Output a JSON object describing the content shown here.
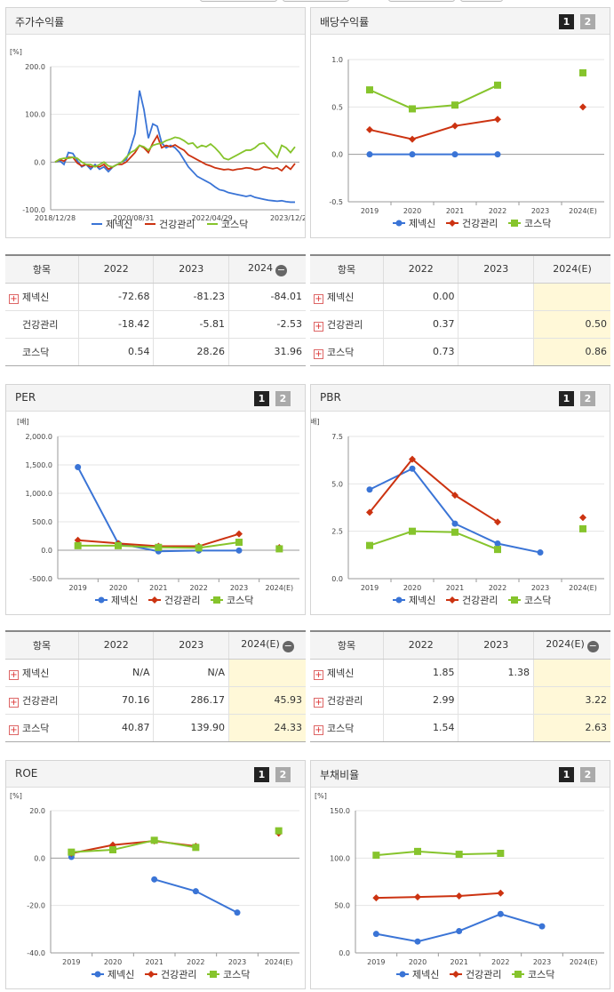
{
  "legend_names": [
    "제넥신",
    "건강관리",
    "코스닥"
  ],
  "colors": {
    "blue": "#3a74d6",
    "red": "#cc3311",
    "green": "#86c42c"
  },
  "toggle_labels": [
    "1",
    "2"
  ],
  "stock_return": {
    "title": "주가수익률",
    "unit": "[%]",
    "chart_data": {
      "type": "line",
      "x_labels": [
        "2018/12/28",
        "2020/08/31",
        "2022/04/29",
        "2023/12/28"
      ],
      "y_ticks": [
        "200.0",
        "100.0",
        "0.0",
        "-100.0"
      ],
      "ylim": [
        -100,
        200
      ],
      "series": [
        {
          "name": "제넥신",
          "values": [
            0,
            3,
            -5,
            20,
            18,
            3,
            -10,
            -5,
            -15,
            -5,
            -15,
            -10,
            -20,
            -10,
            -5,
            0,
            5,
            30,
            60,
            150,
            110,
            50,
            80,
            75,
            40,
            30,
            35,
            30,
            20,
            5,
            -10,
            -20,
            -30,
            -35,
            -40,
            -45,
            -52,
            -58,
            -60,
            -64,
            -66,
            -68,
            -70,
            -72,
            -70,
            -74,
            -76,
            -78,
            -80,
            -81,
            -82,
            -81,
            -83,
            -84,
            -84
          ]
        },
        {
          "name": "건강관리",
          "values": [
            0,
            5,
            2,
            10,
            10,
            -2,
            -8,
            -5,
            -10,
            -8,
            -10,
            -5,
            -15,
            -10,
            -5,
            -5,
            0,
            10,
            20,
            35,
            30,
            20,
            40,
            55,
            30,
            35,
            32,
            36,
            30,
            25,
            15,
            10,
            5,
            0,
            -5,
            -8,
            -12,
            -14,
            -16,
            -15,
            -17,
            -15,
            -14,
            -12,
            -13,
            -16,
            -15,
            -10,
            -12,
            -14,
            -12,
            -18,
            -8,
            -15,
            -3
          ]
        },
        {
          "name": "코스닥",
          "values": [
            0,
            6,
            8,
            8,
            10,
            8,
            0,
            -5,
            -5,
            -10,
            -5,
            0,
            -8,
            -10,
            -5,
            0,
            10,
            20,
            25,
            35,
            32,
            25,
            35,
            38,
            40,
            45,
            48,
            52,
            50,
            45,
            38,
            40,
            30,
            35,
            32,
            38,
            30,
            20,
            8,
            5,
            10,
            15,
            20,
            25,
            25,
            30,
            38,
            40,
            30,
            20,
            10,
            35,
            30,
            20,
            32
          ]
        }
      ]
    }
  },
  "dividend": {
    "title": "배당수익률",
    "chart_data": {
      "type": "line",
      "categories": [
        "2019",
        "2020",
        "2021",
        "2022",
        "2023",
        "2024(E)"
      ],
      "y_ticks": [
        "1.0",
        "0.5",
        "0.0",
        "-0.5"
      ],
      "ylim": [
        -0.5,
        1.0
      ],
      "series": [
        {
          "name": "제넥신",
          "values": [
            0.0,
            0.0,
            0.0,
            0.0,
            null,
            null
          ]
        },
        {
          "name": "건강관리",
          "values": [
            0.26,
            0.16,
            0.3,
            0.37,
            null,
            0.5
          ]
        },
        {
          "name": "코스닥",
          "values": [
            0.68,
            0.48,
            0.52,
            0.73,
            null,
            0.86
          ]
        }
      ]
    }
  },
  "per": {
    "title": "PER",
    "unit": "[배]",
    "chart_data": {
      "type": "line",
      "categories": [
        "2019",
        "2020",
        "2021",
        "2022",
        "2023",
        "2024(E)"
      ],
      "y_ticks": [
        "2,000.0",
        "1,500.0",
        "1,000.0",
        "500.0",
        "0.0",
        "-500.0"
      ],
      "ylim": [
        -500,
        2000
      ],
      "series": [
        {
          "name": "제넥신",
          "values": [
            1460,
            120,
            -20,
            -5,
            -5,
            null
          ]
        },
        {
          "name": "건강관리",
          "values": [
            175,
            120,
            70,
            70,
            286.17,
            45.93
          ]
        },
        {
          "name": "코스닥",
          "values": [
            80,
            80,
            50,
            40.87,
            139.9,
            24.33
          ]
        }
      ]
    }
  },
  "pbr": {
    "title": "PBR",
    "unit": "[배]",
    "chart_data": {
      "type": "line",
      "categories": [
        "2019",
        "2020",
        "2021",
        "2022",
        "2023",
        "2024(E)"
      ],
      "y_ticks": [
        "7.5",
        "5.0",
        "2.5",
        "0.0"
      ],
      "ylim": [
        0,
        7.5
      ],
      "series": [
        {
          "name": "제넥신",
          "values": [
            4.7,
            5.8,
            2.9,
            1.85,
            1.38,
            null
          ]
        },
        {
          "name": "건강관리",
          "values": [
            3.5,
            6.3,
            4.4,
            2.99,
            null,
            3.22
          ]
        },
        {
          "name": "코스닥",
          "values": [
            1.75,
            2.5,
            2.45,
            1.54,
            null,
            2.63
          ]
        }
      ]
    }
  },
  "roe": {
    "title": "ROE",
    "unit": "[%]",
    "chart_data": {
      "type": "line",
      "categories": [
        "2019",
        "2020",
        "2021",
        "2022",
        "2023",
        "2024(E)"
      ],
      "y_ticks": [
        "20.0",
        "0.0",
        "-20.0",
        "-40.0"
      ],
      "ylim": [
        -40,
        20
      ],
      "series": [
        {
          "name": "제넥신",
          "values": [
            0.5,
            null,
            -9,
            -14,
            -23,
            null
          ]
        },
        {
          "name": "건강관리",
          "values": [
            2,
            5.5,
            7.2,
            5,
            null,
            10.5
          ]
        },
        {
          "name": "코스닥",
          "values": [
            2.5,
            3.5,
            7.5,
            4.5,
            null,
            11.5
          ]
        }
      ]
    }
  },
  "debt": {
    "title": "부채비율",
    "unit": "[%]",
    "chart_data": {
      "type": "line",
      "categories": [
        "2019",
        "2020",
        "2021",
        "2022",
        "2023",
        "2024(E)"
      ],
      "y_ticks": [
        "150.0",
        "100.0",
        "50.0",
        "0.0"
      ],
      "ylim": [
        0,
        150
      ],
      "series": [
        {
          "name": "제넥신",
          "values": [
            20,
            12,
            23,
            41,
            28,
            null
          ]
        },
        {
          "name": "건강관리",
          "values": [
            58,
            59,
            60,
            63,
            null,
            null
          ]
        },
        {
          "name": "코스닥",
          "values": [
            103,
            107,
            104,
            105,
            null,
            null
          ]
        }
      ]
    }
  },
  "tables": {
    "stock": {
      "headers": [
        "항목",
        "2022",
        "2023",
        "2024"
      ],
      "rows": [
        {
          "name": "제넥신",
          "cells": [
            "-72.68",
            "-81.23",
            "-84.01"
          ]
        },
        {
          "name": "건강관리",
          "cells": [
            "-18.42",
            "-5.81",
            "-2.53"
          ]
        },
        {
          "name": "코스닥",
          "cells": [
            "0.54",
            "28.26",
            "31.96"
          ]
        }
      ]
    },
    "dividend": {
      "headers": [
        "항목",
        "2022",
        "2023",
        "2024(E)"
      ],
      "rows": [
        {
          "name": "제넥신",
          "cells": [
            "0.00",
            "",
            ""
          ]
        },
        {
          "name": "건강관리",
          "cells": [
            "0.37",
            "",
            "0.50"
          ]
        },
        {
          "name": "코스닥",
          "cells": [
            "0.73",
            "",
            "0.86"
          ]
        }
      ]
    },
    "per": {
      "headers": [
        "항목",
        "2022",
        "2023",
        "2024(E)"
      ],
      "rows": [
        {
          "name": "제넥신",
          "cells": [
            "N/A",
            "N/A",
            ""
          ]
        },
        {
          "name": "건강관리",
          "cells": [
            "70.16",
            "286.17",
            "45.93"
          ]
        },
        {
          "name": "코스닥",
          "cells": [
            "40.87",
            "139.90",
            "24.33"
          ]
        }
      ]
    },
    "pbr": {
      "headers": [
        "항목",
        "2022",
        "2023",
        "2024(E)"
      ],
      "rows": [
        {
          "name": "제넥신",
          "cells": [
            "1.85",
            "1.38",
            ""
          ]
        },
        {
          "name": "건강관리",
          "cells": [
            "2.99",
            "",
            "3.22"
          ]
        },
        {
          "name": "코스닥",
          "cells": [
            "1.54",
            "",
            "2.63"
          ]
        }
      ]
    }
  }
}
